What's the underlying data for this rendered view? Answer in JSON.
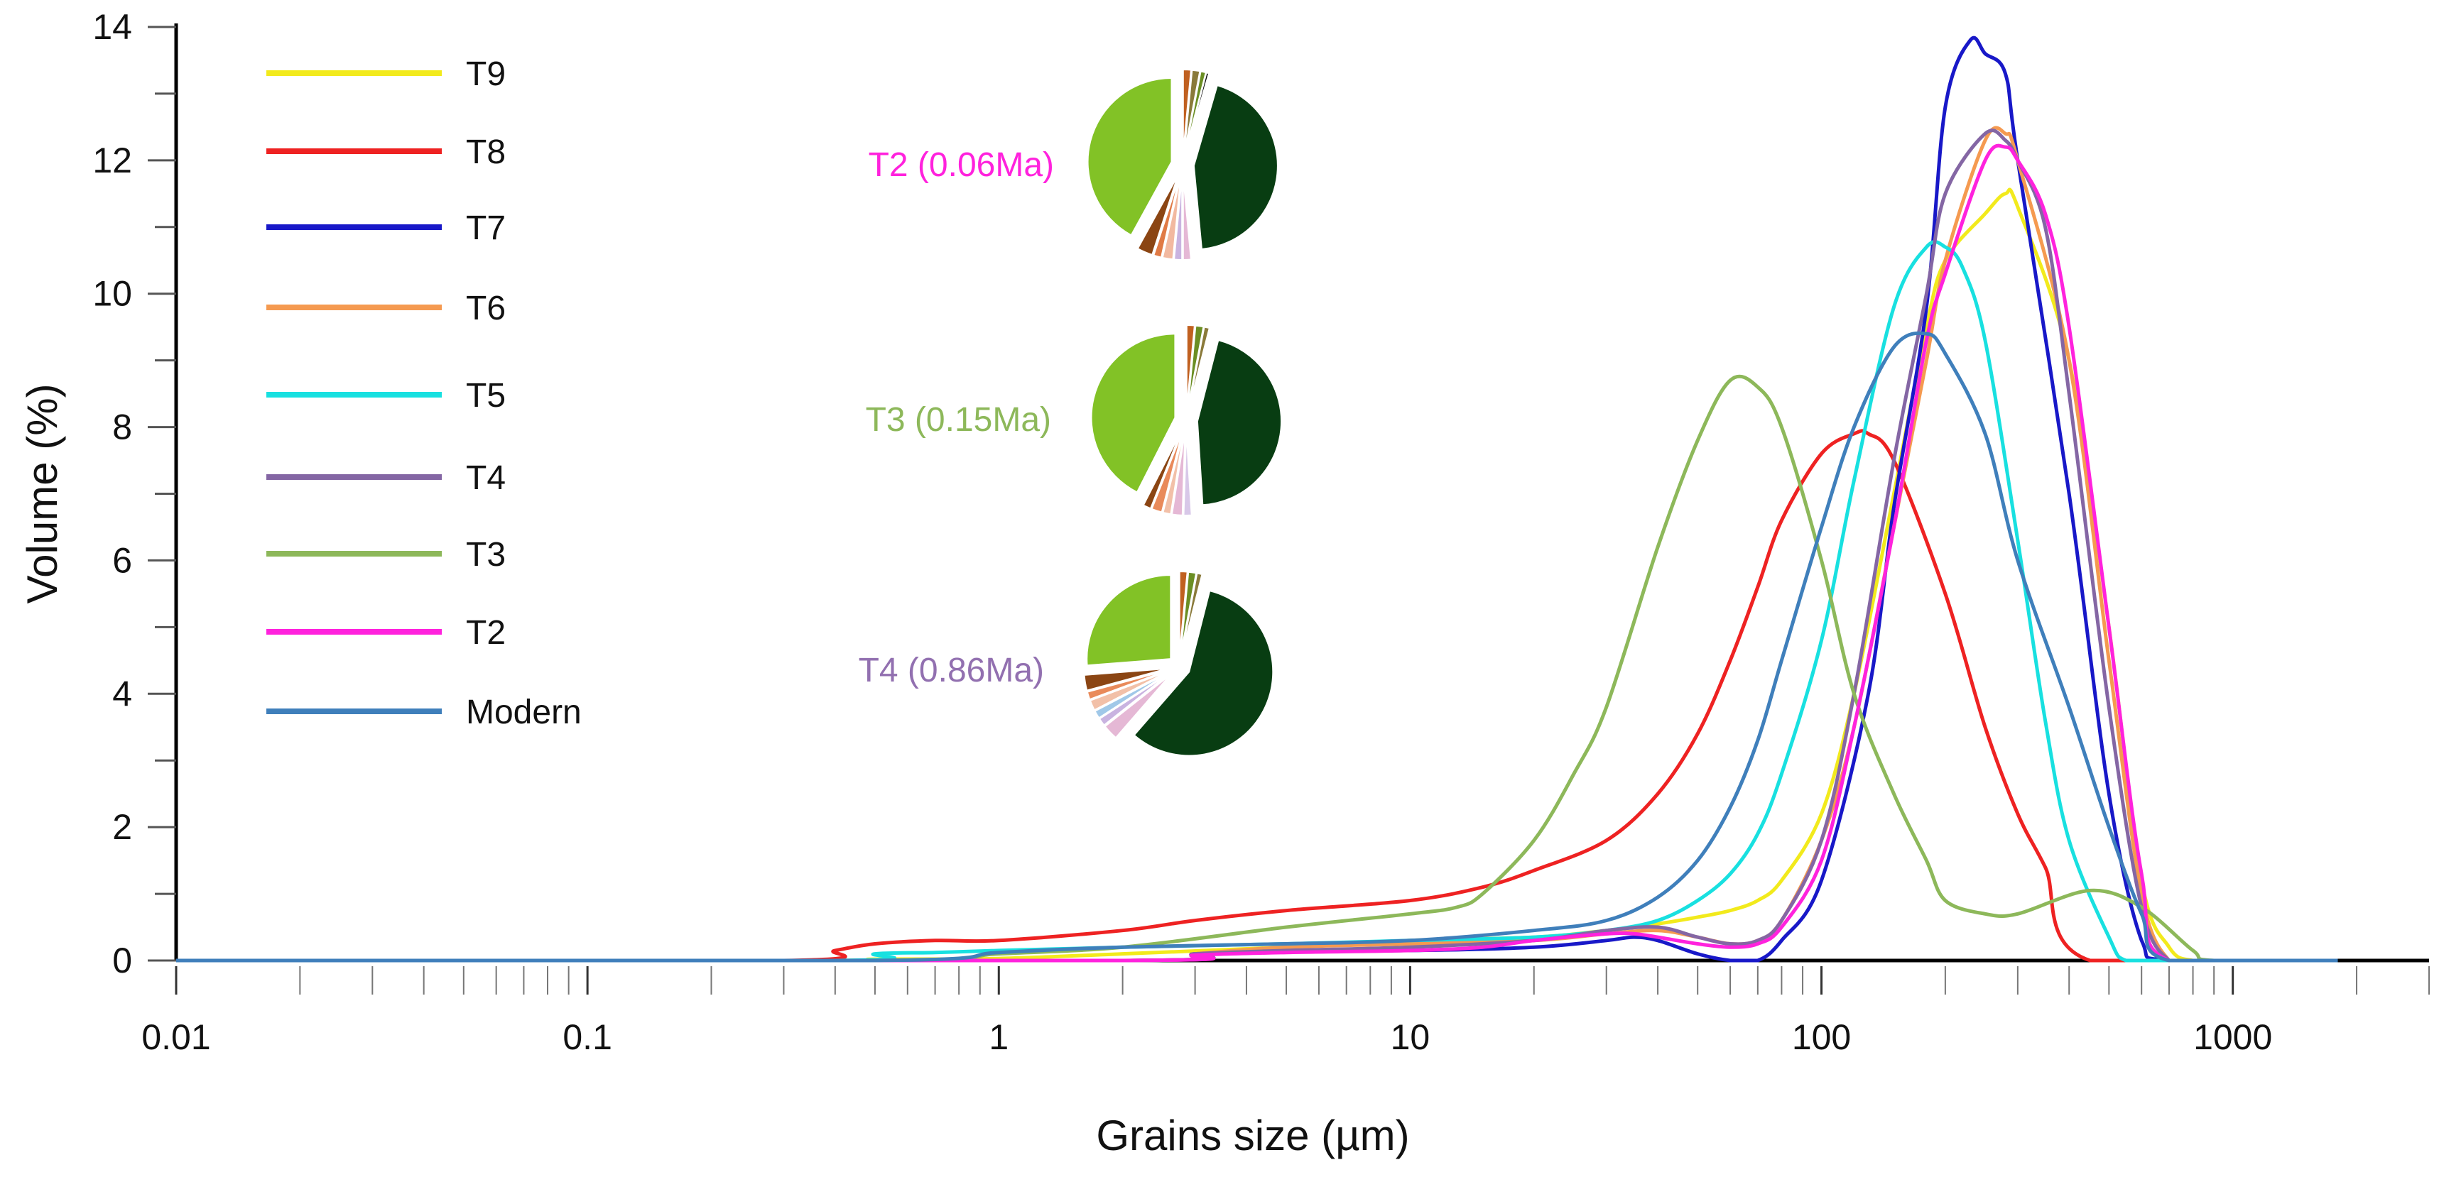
{
  "chart_data": {
    "type": "line",
    "xscale": "log",
    "xlabel": "Grains size (µm)",
    "ylabel": "Volume (%)",
    "xlim": [
      0.01,
      3000
    ],
    "ylim": [
      0,
      14
    ],
    "xticks": [
      {
        "value": 0.01,
        "label": "0.01"
      },
      {
        "value": 0.1,
        "label": "0.1"
      },
      {
        "value": 1,
        "label": "1"
      },
      {
        "value": 10,
        "label": "10"
      },
      {
        "value": 100,
        "label": "100"
      },
      {
        "value": 1000,
        "label": "1000"
      }
    ],
    "yticks": [
      {
        "value": 0,
        "label": "0"
      },
      {
        "value": 2,
        "label": "2"
      },
      {
        "value": 4,
        "label": "4"
      },
      {
        "value": 6,
        "label": "6"
      },
      {
        "value": 8,
        "label": "8"
      },
      {
        "value": 10,
        "label": "10"
      },
      {
        "value": 12,
        "label": "12"
      },
      {
        "value": 14,
        "label": "14"
      }
    ],
    "series": [
      {
        "name": "T9",
        "color": "#f2ea1c",
        "x": [
          0.01,
          0.35,
          0.5,
          1,
          2,
          5,
          10,
          20,
          30,
          40,
          50,
          60,
          70,
          80,
          100,
          120,
          150,
          180,
          200,
          250,
          280,
          300,
          400,
          500,
          600,
          700,
          800,
          1000,
          1800
        ],
        "y": [
          0,
          0,
          0.02,
          0.03,
          0.1,
          0.2,
          0.3,
          0.35,
          0.45,
          0.55,
          0.65,
          0.75,
          0.9,
          1.2,
          2.2,
          4.0,
          7.0,
          9.5,
          10.5,
          11.2,
          11.5,
          11.3,
          9.0,
          5.0,
          1.2,
          0.2,
          0,
          0,
          0
        ]
      },
      {
        "name": "T8",
        "color": "#ee2222",
        "x": [
          0.01,
          0.3,
          0.4,
          0.5,
          0.7,
          1,
          2,
          3,
          5,
          10,
          15,
          20,
          30,
          40,
          50,
          60,
          70,
          80,
          100,
          120,
          130,
          150,
          200,
          250,
          300,
          350,
          450,
          1800
        ],
        "y": [
          0,
          0,
          0.15,
          0.25,
          0.3,
          0.3,
          0.45,
          0.6,
          0.75,
          0.9,
          1.1,
          1.35,
          1.8,
          2.5,
          3.4,
          4.5,
          5.6,
          6.6,
          7.6,
          7.9,
          7.9,
          7.5,
          5.5,
          3.5,
          2.2,
          1.4,
          0,
          0
        ]
      },
      {
        "name": "T7",
        "color": "#1818c8",
        "x": [
          0.01,
          2,
          3,
          5,
          10,
          20,
          30,
          35,
          40,
          50,
          60,
          70,
          80,
          100,
          130,
          150,
          180,
          200,
          230,
          250,
          280,
          300,
          400,
          500,
          600,
          700,
          1800
        ],
        "y": [
          0,
          0,
          0.1,
          0.15,
          0.15,
          0.2,
          0.3,
          0.35,
          0.3,
          0.1,
          0,
          0,
          0.3,
          1.2,
          4.0,
          6.8,
          9.8,
          12.8,
          13.8,
          13.6,
          13.3,
          12.0,
          7.0,
          2.5,
          0.3,
          0,
          0
        ]
      },
      {
        "name": "T6",
        "color": "#f59a50",
        "x": [
          0.01,
          2,
          3,
          5,
          10,
          20,
          30,
          40,
          50,
          60,
          70,
          80,
          100,
          120,
          150,
          180,
          200,
          250,
          280,
          300,
          400,
          500,
          600,
          700,
          800,
          1800
        ],
        "y": [
          0,
          0,
          0.1,
          0.2,
          0.25,
          0.3,
          0.4,
          0.45,
          0.35,
          0.25,
          0.3,
          0.6,
          1.8,
          3.5,
          6.5,
          9.0,
          10.5,
          12.3,
          12.4,
          12.0,
          9.0,
          4.5,
          1.0,
          0,
          0,
          0
        ]
      },
      {
        "name": "T5",
        "color": "#18e0e0",
        "x": [
          0.01,
          0.4,
          0.5,
          0.7,
          1,
          2,
          5,
          10,
          20,
          30,
          40,
          50,
          60,
          70,
          80,
          100,
          120,
          150,
          180,
          200,
          220,
          250,
          300,
          350,
          400,
          500,
          550,
          700,
          1800
        ],
        "y": [
          0,
          0,
          0.1,
          0.12,
          0.15,
          0.2,
          0.25,
          0.3,
          0.35,
          0.45,
          0.6,
          0.9,
          1.3,
          1.9,
          2.8,
          4.8,
          7.2,
          9.8,
          10.7,
          10.7,
          10.4,
          9.3,
          6.3,
          3.6,
          1.8,
          0.35,
          0,
          0,
          0
        ]
      },
      {
        "name": "T4",
        "color": "#8466a4",
        "x": [
          0.01,
          2,
          3,
          5,
          10,
          20,
          30,
          40,
          50,
          60,
          70,
          80,
          100,
          120,
          150,
          180,
          200,
          250,
          280,
          300,
          350,
          400,
          500,
          600,
          700,
          800,
          1800
        ],
        "y": [
          0,
          0,
          0.1,
          0.15,
          0.2,
          0.3,
          0.45,
          0.5,
          0.35,
          0.25,
          0.3,
          0.6,
          1.8,
          4.0,
          7.5,
          10.0,
          11.5,
          12.4,
          12.3,
          12.0,
          11.0,
          8.5,
          3.8,
          0.8,
          0,
          0,
          0
        ]
      },
      {
        "name": "T3",
        "color": "#8db85a",
        "x": [
          0.01,
          0.5,
          1,
          2,
          5,
          10,
          13,
          15,
          20,
          25,
          30,
          40,
          50,
          60,
          70,
          80,
          100,
          120,
          150,
          180,
          200,
          250,
          300,
          450,
          600,
          800,
          900,
          1800
        ],
        "y": [
          0,
          0,
          0.1,
          0.2,
          0.5,
          0.7,
          0.8,
          1.0,
          1.8,
          2.8,
          3.8,
          6.2,
          7.8,
          8.7,
          8.6,
          8.0,
          6.0,
          4.0,
          2.5,
          1.5,
          0.9,
          0.7,
          0.7,
          1.05,
          0.8,
          0.15,
          0,
          0
        ]
      },
      {
        "name": "T2",
        "color": "#ff22dd",
        "x": [
          0.01,
          2,
          3,
          5,
          10,
          15,
          20,
          30,
          35,
          40,
          50,
          60,
          70,
          80,
          100,
          120,
          150,
          180,
          200,
          250,
          280,
          300,
          350,
          400,
          500,
          600,
          700,
          1800
        ],
        "y": [
          0,
          0,
          0.08,
          0.12,
          0.15,
          0.2,
          0.3,
          0.4,
          0.4,
          0.35,
          0.25,
          0.2,
          0.25,
          0.5,
          1.5,
          3.5,
          6.5,
          9.3,
          10.3,
          12.0,
          12.2,
          12.0,
          11.2,
          9.5,
          5.0,
          1.3,
          0,
          0
        ]
      },
      {
        "name": "Modern",
        "color": "#3f7fbb",
        "x": [
          0.01,
          0.5,
          1,
          2,
          5,
          10,
          20,
          30,
          40,
          50,
          60,
          70,
          80,
          100,
          120,
          150,
          180,
          200,
          250,
          300,
          400,
          500,
          600,
          700,
          1800
        ],
        "y": [
          0,
          0,
          0.12,
          0.2,
          0.25,
          0.3,
          0.45,
          0.6,
          0.95,
          1.5,
          2.3,
          3.3,
          4.5,
          6.5,
          8.0,
          9.2,
          9.4,
          9.1,
          7.9,
          6.0,
          3.8,
          2.0,
          0.7,
          0,
          0
        ]
      }
    ],
    "pie_groups": [
      {
        "label": "T2 (0.06Ma)",
        "label_color": "#ff22dd",
        "slices": [
          {
            "value": 1.5,
            "color": "#c06020"
          },
          {
            "value": 1.5,
            "color": "#8a7a3a"
          },
          {
            "value": 1,
            "color": "#6b8e23"
          },
          {
            "value": 0.5,
            "color": "#111111"
          },
          {
            "value": 44,
            "color": "#083d12"
          },
          {
            "value": 1.5,
            "color": "#e5b8d5"
          },
          {
            "value": 1.5,
            "color": "#c9b3e0"
          },
          {
            "value": 2,
            "color": "#f2b9a0"
          },
          {
            "value": 1.5,
            "color": "#e07a45"
          },
          {
            "value": 3,
            "color": "#8b4513"
          },
          {
            "value": 42,
            "color": "#82c226"
          }
        ]
      },
      {
        "label": "T3 (0.15Ma)",
        "label_color": "#8db85a",
        "slices": [
          {
            "value": 1.5,
            "color": "#c06020"
          },
          {
            "value": 1.5,
            "color": "#6b8e23"
          },
          {
            "value": 1,
            "color": "#8a7a3a"
          },
          {
            "value": 45,
            "color": "#083d12"
          },
          {
            "value": 1.5,
            "color": "#d8c8e8"
          },
          {
            "value": 2,
            "color": "#e5b8d5"
          },
          {
            "value": 1.5,
            "color": "#f2c0a8"
          },
          {
            "value": 2,
            "color": "#e98a5a"
          },
          {
            "value": 1.5,
            "color": "#8b4513"
          },
          {
            "value": 42.5,
            "color": "#82c226"
          }
        ]
      },
      {
        "label": "T4 (0.86Ma)",
        "label_color": "#9270b0",
        "slices": [
          {
            "value": 1.5,
            "color": "#c06020"
          },
          {
            "value": 1.5,
            "color": "#6b8e23"
          },
          {
            "value": 1,
            "color": "#8a7a3a"
          },
          {
            "value": 58,
            "color": "#083d12"
          },
          {
            "value": 3,
            "color": "#e5b8d5"
          },
          {
            "value": 1.5,
            "color": "#c9b3e0"
          },
          {
            "value": 1.5,
            "color": "#a0c8e8"
          },
          {
            "value": 2,
            "color": "#f2c0a8"
          },
          {
            "value": 1.5,
            "color": "#e98a5a"
          },
          {
            "value": 3,
            "color": "#8b4513"
          },
          {
            "value": 26.5,
            "color": "#82c226"
          }
        ]
      }
    ]
  }
}
